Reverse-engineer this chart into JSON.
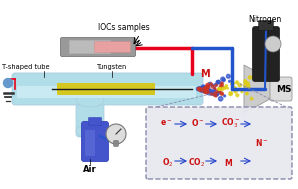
{
  "bg_color": "#ffffff",
  "labels": {
    "iocs": "IOCs samples",
    "t_shaped": "T-shaped tube",
    "tungsten": "Tungsten",
    "air": "Air",
    "nitrogen": "Nitrogen",
    "ms": "MS",
    "M_spray": "M"
  },
  "colors": {
    "tube_body": "#b0dde8",
    "tube_highlight": "#d0eef5",
    "tube_edge": "#aaccdd",
    "tungsten_wire": "#1a1a1a",
    "yellow_inner": "#d4c820",
    "red_line": "#e8001c",
    "blue_line": "#2255cc",
    "dot_blue": "#3355cc",
    "dot_red": "#cc3322",
    "dot_yellow": "#ddcc11",
    "inset_bg": "#e8e8f0",
    "inset_border": "#8888aa",
    "red_text": "#cc1111",
    "blue_arrow": "#2244cc",
    "ground_blue": "#6699cc",
    "n2_bottle": "#222222",
    "air_bottle": "#4455cc",
    "air_bottle_light": "#6677dd",
    "ms_body": "#cccccc",
    "ms_body2": "#dddddd",
    "sample_holder": "#999999",
    "pink_sample": "#e8a0a0",
    "gauge_face": "#dddddd",
    "black": "#111111",
    "dark_gray": "#333333",
    "mid_gray": "#888888",
    "light_gray": "#cccccc"
  }
}
